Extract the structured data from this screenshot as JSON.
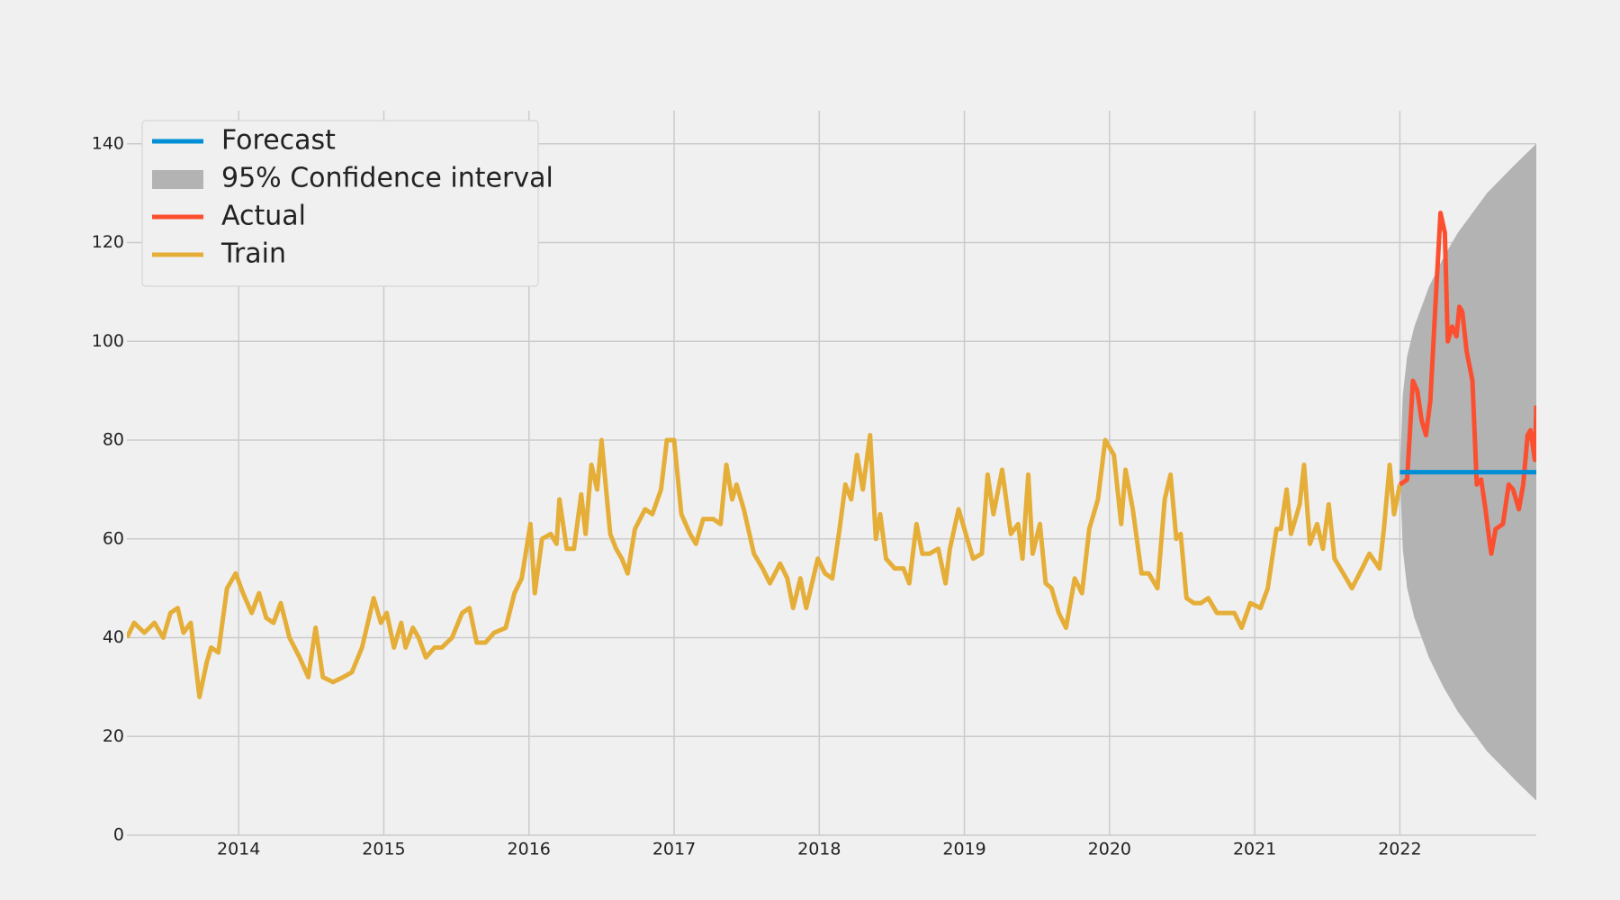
{
  "chart_data": {
    "type": "line",
    "xlim": [
      2013.23,
      2022.94
    ],
    "ylim": [
      0,
      146.7
    ],
    "xticks": [
      2014,
      2015,
      2016,
      2017,
      2018,
      2019,
      2020,
      2021,
      2022
    ],
    "yticks": [
      0,
      20,
      40,
      60,
      80,
      100,
      120,
      140
    ],
    "grid": true,
    "legend": "upper left",
    "series": [
      {
        "name": "Forecast",
        "color": "#008fd5",
        "x": [
          2022.0,
          2022.94
        ],
        "values": [
          73.5,
          73.5
        ]
      },
      {
        "name": "95% Confidence interval",
        "type": "band",
        "color": "#b3b3b3",
        "x": [
          2022.0,
          2022.02,
          2022.05,
          2022.1,
          2022.2,
          2022.3,
          2022.4,
          2022.5,
          2022.6,
          2022.7,
          2022.8,
          2022.94
        ],
        "lower": [
          73.5,
          58,
          50,
          44,
          36,
          30,
          25,
          21,
          17,
          14,
          11,
          7
        ],
        "upper": [
          73.5,
          89,
          97,
          103,
          111,
          117,
          122,
          126,
          130,
          133,
          136,
          140
        ]
      },
      {
        "name": "Actual",
        "color": "#fc4f30",
        "x": [
          2022.0,
          2022.05,
          2022.09,
          2022.12,
          2022.15,
          2022.18,
          2022.21,
          2022.25,
          2022.28,
          2022.31,
          2022.33,
          2022.36,
          2022.39,
          2022.41,
          2022.43,
          2022.46,
          2022.5,
          2022.53,
          2022.56,
          2022.59,
          2022.62,
          2022.63,
          2022.66,
          2022.71,
          2022.75,
          2022.78,
          2022.82,
          2022.85,
          2022.88,
          2022.9,
          2022.93,
          2022.94
        ],
        "values": [
          71,
          72,
          92,
          90,
          84,
          81,
          88,
          110,
          126,
          122,
          100,
          103,
          101,
          107,
          106,
          98,
          92,
          71,
          72,
          66,
          59,
          57,
          62,
          63,
          71,
          70,
          66,
          71,
          81,
          82,
          76,
          87
        ]
      },
      {
        "name": "Train",
        "color": "#e5ae38",
        "x": [
          2013.23,
          2013.28,
          2013.35,
          2013.42,
          2013.48,
          2013.53,
          2013.58,
          2013.62,
          2013.67,
          2013.71,
          2013.73,
          2013.78,
          2013.81,
          2013.86,
          2013.92,
          2013.98,
          2014.03,
          2014.09,
          2014.14,
          2014.19,
          2014.24,
          2014.29,
          2014.35,
          2014.42,
          2014.48,
          2014.53,
          2014.58,
          2014.65,
          2014.72,
          2014.78,
          2014.85,
          2014.93,
          2014.98,
          2015.02,
          2015.07,
          2015.12,
          2015.15,
          2015.2,
          2015.24,
          2015.29,
          2015.35,
          2015.4,
          2015.47,
          2015.54,
          2015.59,
          2015.64,
          2015.7,
          2015.76,
          2015.84,
          2015.9,
          2015.95,
          2016.01,
          2016.04,
          2016.09,
          2016.15,
          2016.19,
          2016.21,
          2016.26,
          2016.31,
          2016.36,
          2016.39,
          2016.43,
          2016.47,
          2016.5,
          2016.56,
          2016.6,
          2016.64,
          2016.68,
          2016.73,
          2016.8,
          2016.85,
          2016.91,
          2016.95,
          2017.0,
          2017.05,
          2017.11,
          2017.15,
          2017.2,
          2017.27,
          2017.32,
          2017.36,
          2017.4,
          2017.43,
          2017.48,
          2017.55,
          2017.61,
          2017.66,
          2017.73,
          2017.78,
          2017.82,
          2017.87,
          2017.91,
          2017.95,
          2017.99,
          2018.04,
          2018.09,
          2018.14,
          2018.18,
          2018.22,
          2018.26,
          2018.3,
          2018.35,
          2018.39,
          2018.42,
          2018.46,
          2018.52,
          2018.58,
          2018.62,
          2018.67,
          2018.71,
          2018.76,
          2018.82,
          2018.87,
          2018.9,
          2018.96,
          2019.01,
          2019.06,
          2019.12,
          2019.16,
          2019.2,
          2019.26,
          2019.32,
          2019.37,
          2019.4,
          2019.44,
          2019.47,
          2019.52,
          2019.56,
          2019.6,
          2019.65,
          2019.7,
          2019.76,
          2019.81,
          2019.86,
          2019.92,
          2019.97,
          2020.03,
          2020.08,
          2020.11,
          2020.16,
          2020.22,
          2020.27,
          2020.33,
          2020.38,
          2020.42,
          2020.46,
          2020.49,
          2020.53,
          2020.58,
          2020.63,
          2020.68,
          2020.74,
          2020.79,
          2020.86,
          2020.91,
          2020.97,
          2021.04,
          2021.09,
          2021.15,
          2021.18,
          2021.22,
          2021.25,
          2021.31,
          2021.34,
          2021.38,
          2021.43,
          2021.47,
          2021.51,
          2021.55,
          2021.61,
          2021.67,
          2021.74,
          2021.79,
          2021.86,
          2021.89,
          2021.93,
          2021.96,
          2022.0
        ],
        "values": [
          40,
          43,
          41,
          43,
          40,
          45,
          46,
          41,
          43,
          33,
          28,
          35,
          38,
          37,
          50,
          53,
          49,
          45,
          49,
          44,
          43,
          47,
          40,
          36,
          32,
          42,
          32,
          31,
          32,
          33,
          38,
          48,
          43,
          45,
          38,
          43,
          38,
          42,
          40,
          36,
          38,
          38,
          40,
          45,
          46,
          39,
          39,
          41,
          42,
          49,
          52,
          63,
          49,
          60,
          61,
          59,
          68,
          58,
          58,
          69,
          61,
          75,
          70,
          80,
          61,
          58,
          56,
          53,
          62,
          66,
          65,
          70,
          80,
          80,
          65,
          61,
          59,
          64,
          64,
          63,
          75,
          68,
          71,
          66,
          57,
          54,
          51,
          55,
          52,
          46,
          52,
          46,
          51,
          56,
          53,
          52,
          62,
          71,
          68,
          77,
          70,
          81,
          60,
          65,
          56,
          54,
          54,
          51,
          63,
          57,
          57,
          58,
          51,
          58,
          66,
          61,
          56,
          57,
          73,
          65,
          74,
          61,
          63,
          56,
          73,
          57,
          63,
          51,
          50,
          45,
          42,
          52,
          49,
          62,
          68,
          80,
          77,
          63,
          74,
          66,
          53,
          53,
          50,
          68,
          73,
          60,
          61,
          48,
          47,
          47,
          48,
          45,
          45,
          45,
          42,
          47,
          46,
          50,
          62,
          62,
          70,
          61,
          67,
          75,
          59,
          63,
          58,
          67,
          56,
          53,
          50,
          54,
          57,
          54,
          62,
          75,
          65,
          71
        ]
      }
    ]
  }
}
